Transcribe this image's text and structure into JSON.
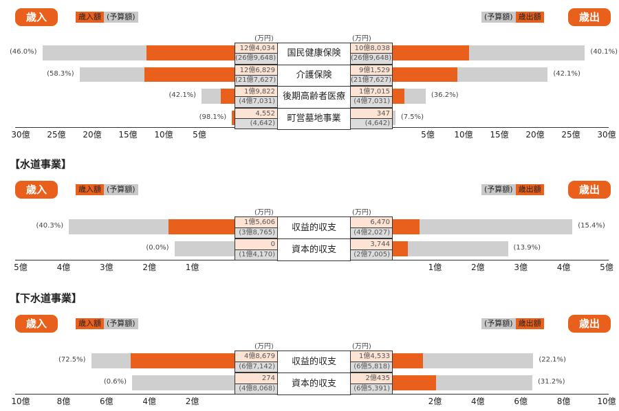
{
  "legend": {
    "revenue_pill": "歳入",
    "expense_pill": "歳出",
    "revenue_actual": "歳入額",
    "budget": "(予算額)",
    "expense_actual": "歳出額",
    "unit": "(万円)"
  },
  "colors": {
    "actual": "#e8601c",
    "budget": "#cfcfcf",
    "actual_cell": "#fde3d3",
    "budget_cell": "#dcdcdc"
  },
  "chart_data": [
    {
      "type": "bar",
      "title": "",
      "unit": "万円",
      "axis_max_oku": 30,
      "ticks": [
        "30億",
        "25億",
        "20億",
        "15億",
        "10億",
        "5億"
      ],
      "ticks_right": [
        "5億",
        "10億",
        "15億",
        "20億",
        "25億",
        "30億"
      ],
      "tick_values": [
        30,
        25,
        20,
        15,
        10,
        5
      ],
      "rows": [
        {
          "label": "国民健康保険",
          "rev": "12億4,034",
          "rev_budget": "(26億9,648)",
          "rev_pct": "(46.0%)",
          "exp": "10億8,038",
          "exp_budget": "(26億9,648)",
          "exp_pct": "(40.1%)"
        },
        {
          "label": "介護保険",
          "rev": "12億6,829",
          "rev_budget": "(21億7,627)",
          "rev_pct": "(58.3%)",
          "exp": "9億1,529",
          "exp_budget": "(21億7,627)",
          "exp_pct": "(42.1%)"
        },
        {
          "label": "後期高齢者医療",
          "rev": "1億9,822",
          "rev_budget": "(4億7,031)",
          "rev_pct": "(42.1%)",
          "exp": "1億7,015",
          "exp_budget": "(4億7,031)",
          "exp_pct": "(36.2%)"
        },
        {
          "label": "町営墓地事業",
          "rev": "4,552",
          "rev_budget": "(4,642)",
          "rev_pct": "(98.1%)",
          "exp": "347",
          "exp_budget": "(4,642)",
          "exp_pct": "(7.5%)"
        }
      ]
    },
    {
      "type": "bar",
      "title": "【水道事業】",
      "unit": "万円",
      "axis_max_oku": 5,
      "ticks": [
        "5億",
        "4億",
        "3億",
        "2億",
        "1億"
      ],
      "ticks_right": [
        "1億",
        "2億",
        "3億",
        "4億",
        "5億"
      ],
      "tick_values": [
        5,
        4,
        3,
        2,
        1
      ],
      "rows": [
        {
          "label": "収益的収支",
          "rev": "1億5,606",
          "rev_budget": "(3億8,765)",
          "rev_pct": "(40.3%)",
          "exp": "6,470",
          "exp_budget": "(4億2,027)",
          "exp_pct": "(15.4%)"
        },
        {
          "label": "資本的収支",
          "rev": "0",
          "rev_budget": "(1億4,170)",
          "rev_pct": "(0.0%)",
          "exp": "3,744",
          "exp_budget": "(2億7,005)",
          "exp_pct": "(13.9%)"
        }
      ]
    },
    {
      "type": "bar",
      "title": "【下水道事業】",
      "unit": "万円",
      "axis_max_oku": 10,
      "ticks": [
        "10億",
        "8億",
        "6億",
        "4億",
        "2億"
      ],
      "ticks_right": [
        "2億",
        "4億",
        "6億",
        "8億",
        "10億"
      ],
      "tick_values": [
        10,
        8,
        6,
        4,
        2
      ],
      "rows": [
        {
          "label": "収益的収支",
          "rev": "4億8,679",
          "rev_budget": "(6億7,142)",
          "rev_pct": "(72.5%)",
          "exp": "1億4,533",
          "exp_budget": "(6億5,818)",
          "exp_pct": "(22.1%)"
        },
        {
          "label": "資本的収支",
          "rev": "274",
          "rev_budget": "(4億8,068)",
          "rev_pct": "(0.6%)",
          "exp": "2億435",
          "exp_budget": "(6億5,391)",
          "exp_pct": "(31.2%)"
        }
      ]
    }
  ]
}
